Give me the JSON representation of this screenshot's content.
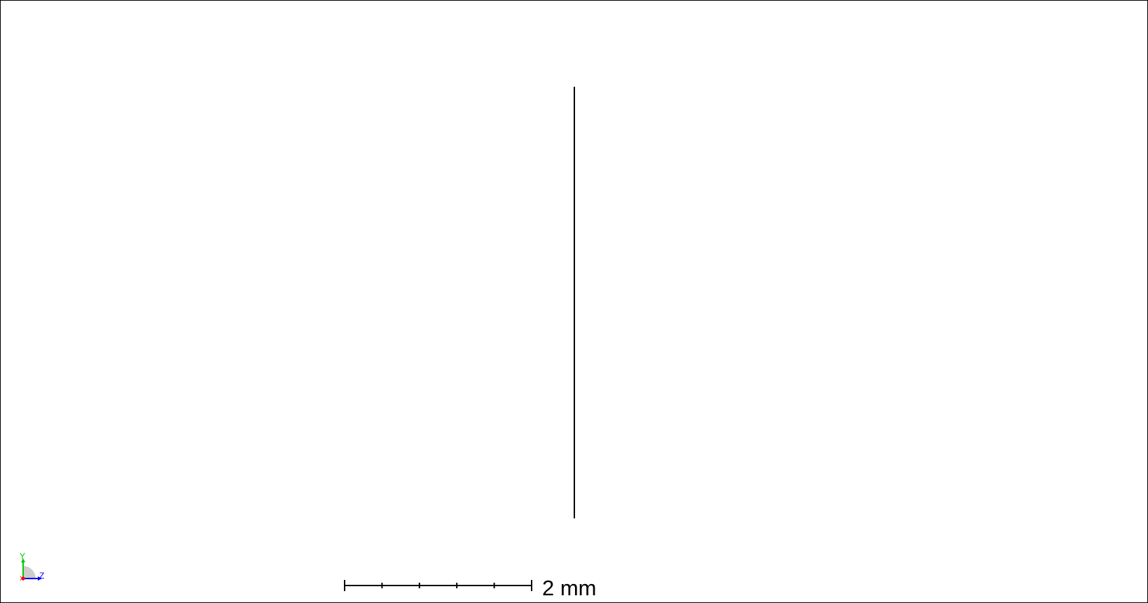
{
  "viewport": {
    "scale_bar": {
      "label": "2 mm",
      "subdivisions": 5
    },
    "axis_triad": {
      "y_label": "Y",
      "z_label": "Z",
      "x_label": "X",
      "colors": {
        "y": "#00c800",
        "z": "#0000ff",
        "x": "#ff0000",
        "wedge": "#c0c0c0"
      }
    },
    "colors": {
      "background": "#ffffff",
      "border": "#000000",
      "geometry": "#000000"
    }
  }
}
